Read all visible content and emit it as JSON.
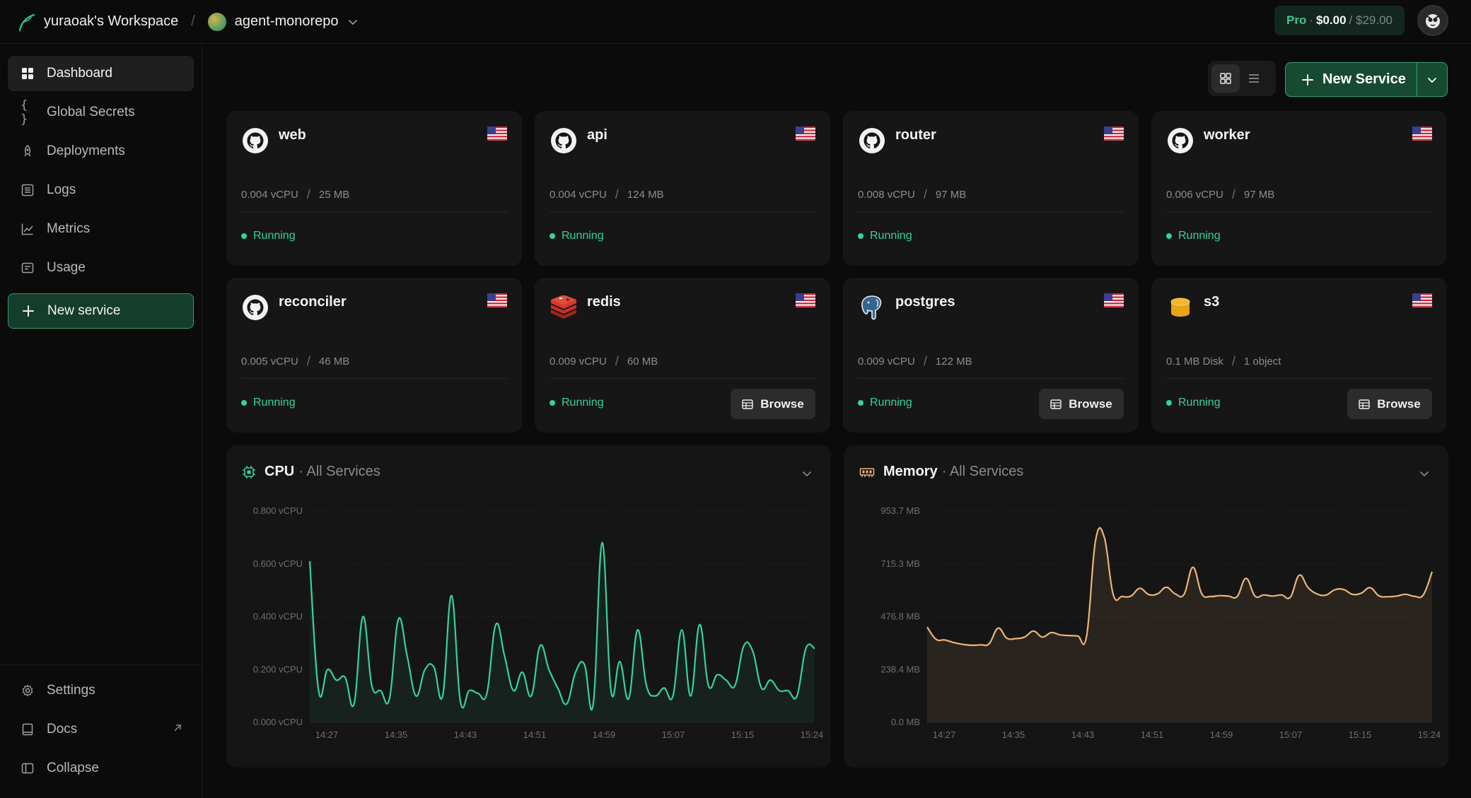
{
  "topbar": {
    "workspace": "yuraoak's Workspace",
    "separator": "/",
    "project": "agent-monorepo",
    "plan": {
      "tier": "Pro",
      "dot": "·",
      "spent": "$0.00",
      "limit": "/ $29.00"
    }
  },
  "sidebar": {
    "items": [
      {
        "label": "Dashboard",
        "icon": "grid-icon"
      },
      {
        "label": "Global Secrets",
        "icon": "braces-icon"
      },
      {
        "label": "Deployments",
        "icon": "rocket-icon"
      },
      {
        "label": "Logs",
        "icon": "list-icon"
      },
      {
        "label": "Metrics",
        "icon": "chart-icon"
      },
      {
        "label": "Usage",
        "icon": "receipt-icon"
      }
    ],
    "new_service": "New service",
    "bottom": [
      {
        "label": "Settings",
        "icon": "gear-icon"
      },
      {
        "label": "Docs",
        "icon": "book-icon"
      },
      {
        "label": "Collapse",
        "icon": "sidebar-icon"
      }
    ]
  },
  "toolbar": {
    "new_service": "New Service"
  },
  "services": [
    {
      "name": "web",
      "kind": "github",
      "m1": "0.004 vCPU",
      "m2": "25 MB",
      "status": "Running"
    },
    {
      "name": "api",
      "kind": "github",
      "m1": "0.004 vCPU",
      "m2": "124 MB",
      "status": "Running"
    },
    {
      "name": "router",
      "kind": "github",
      "m1": "0.008 vCPU",
      "m2": "97 MB",
      "status": "Running"
    },
    {
      "name": "worker",
      "kind": "github",
      "m1": "0.006 vCPU",
      "m2": "97 MB",
      "status": "Running"
    },
    {
      "name": "reconciler",
      "kind": "github",
      "m1": "0.005 vCPU",
      "m2": "46 MB",
      "status": "Running"
    },
    {
      "name": "redis",
      "kind": "redis",
      "m1": "0.009 vCPU",
      "m2": "60 MB",
      "status": "Running",
      "browse": "Browse"
    },
    {
      "name": "postgres",
      "kind": "postgres",
      "m1": "0.009 vCPU",
      "m2": "122 MB",
      "status": "Running",
      "browse": "Browse"
    },
    {
      "name": "s3",
      "kind": "s3",
      "m1": "0.1 MB Disk",
      "m2": "1 object",
      "status": "Running",
      "browse": "Browse"
    }
  ],
  "chart_data": [
    {
      "type": "area",
      "title": "CPU",
      "subtitle": "· All Services",
      "color": "#34d399",
      "ylim": [
        0,
        0.8
      ],
      "y_ticks": [
        "0.000 vCPU",
        "0.200 vCPU",
        "0.400 vCPU",
        "0.600 vCPU",
        "0.800 vCPU"
      ],
      "x_ticks": [
        "14:27",
        "14:35",
        "14:43",
        "14:51",
        "14:59",
        "15:07",
        "15:15",
        "15:24"
      ],
      "grid": true,
      "x_range": [
        "14:27",
        "15:24"
      ],
      "series": [
        {
          "x": [
            "14:27",
            "14:28",
            "14:29",
            "14:30",
            "14:31",
            "14:32",
            "14:33",
            "14:34",
            "14:35",
            "14:36",
            "14:37",
            "14:38",
            "14:39",
            "14:40",
            "14:41",
            "14:42",
            "14:43",
            "14:44",
            "14:45",
            "14:46",
            "14:47",
            "14:48",
            "14:49",
            "14:50",
            "14:51",
            "14:52",
            "14:53",
            "14:54",
            "14:55",
            "14:56",
            "14:57",
            "14:58",
            "14:59",
            "15:00",
            "15:01",
            "15:02",
            "15:03",
            "15:04",
            "15:05",
            "15:06",
            "15:07",
            "15:08",
            "15:09",
            "15:10",
            "15:11",
            "15:12",
            "15:13",
            "15:14",
            "15:15",
            "15:16",
            "15:17",
            "15:18",
            "15:19",
            "15:20",
            "15:21",
            "15:22",
            "15:23",
            "15:24"
          ],
          "values": [
            0.61,
            0.12,
            0.2,
            0.16,
            0.17,
            0.07,
            0.4,
            0.14,
            0.12,
            0.09,
            0.39,
            0.25,
            0.1,
            0.2,
            0.21,
            0.1,
            0.48,
            0.08,
            0.12,
            0.11,
            0.11,
            0.37,
            0.25,
            0.12,
            0.19,
            0.1,
            0.29,
            0.2,
            0.13,
            0.07,
            0.19,
            0.22,
            0.07,
            0.68,
            0.12,
            0.23,
            0.09,
            0.35,
            0.14,
            0.1,
            0.13,
            0.1,
            0.35,
            0.1,
            0.37,
            0.14,
            0.18,
            0.16,
            0.14,
            0.29,
            0.27,
            0.13,
            0.16,
            0.12,
            0.12,
            0.1,
            0.28,
            0.28
          ]
        }
      ]
    },
    {
      "type": "area",
      "title": "Memory",
      "subtitle": "· All Services",
      "color": "#e8b57a",
      "ylim": [
        0,
        953.7
      ],
      "y_ticks": [
        "0.0 MB",
        "238.4 MB",
        "476.8 MB",
        "715.3 MB",
        "953.7 MB"
      ],
      "x_ticks": [
        "14:27",
        "14:35",
        "14:43",
        "14:51",
        "14:59",
        "15:07",
        "15:15",
        "15:24"
      ],
      "grid": true,
      "x_range": [
        "14:27",
        "15:24"
      ],
      "series": [
        {
          "x": [
            "14:27",
            "14:28",
            "14:29",
            "14:30",
            "14:31",
            "14:32",
            "14:33",
            "14:34",
            "14:35",
            "14:36",
            "14:37",
            "14:38",
            "14:39",
            "14:40",
            "14:41",
            "14:42",
            "14:43",
            "14:44",
            "14:45",
            "14:46",
            "14:47",
            "14:48",
            "14:49",
            "14:50",
            "14:51",
            "14:52",
            "14:53",
            "14:54",
            "14:55",
            "14:56",
            "14:57",
            "14:58",
            "14:59",
            "15:00",
            "15:01",
            "15:02",
            "15:03",
            "15:04",
            "15:05",
            "15:06",
            "15:07",
            "15:08",
            "15:09",
            "15:10",
            "15:11",
            "15:12",
            "15:13",
            "15:14",
            "15:15",
            "15:16",
            "15:17",
            "15:18",
            "15:19",
            "15:20",
            "15:21",
            "15:22",
            "15:23",
            "15:24"
          ],
          "values": [
            430,
            375,
            372,
            360,
            352,
            348,
            350,
            355,
            425,
            380,
            378,
            385,
            412,
            385,
            405,
            395,
            392,
            390,
            390,
            818,
            835,
            577,
            568,
            570,
            605,
            577,
            580,
            610,
            580,
            578,
            700,
            580,
            568,
            572,
            570,
            568,
            650,
            570,
            575,
            570,
            575,
            565,
            664,
            608,
            580,
            574,
            598,
            600,
            578,
            583,
            608,
            571,
            567,
            570,
            578,
            569,
            575,
            680
          ]
        }
      ]
    }
  ]
}
